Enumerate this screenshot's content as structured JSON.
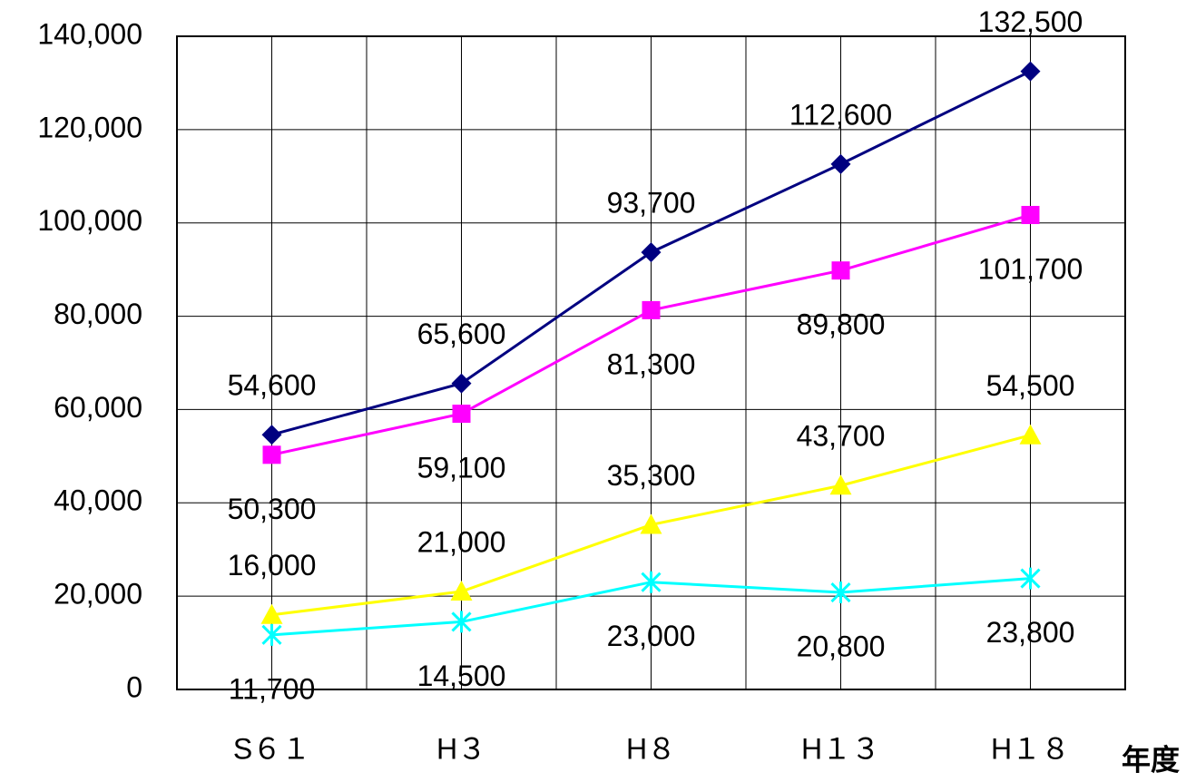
{
  "chart_data": {
    "type": "line",
    "x_label": "年度",
    "categories": [
      "S６１",
      "H３",
      "H８",
      "H１３",
      "H１８"
    ],
    "ylim": [
      0,
      140000
    ],
    "yticks": [
      0,
      {
        "value": 20000,
        "label": "20,000"
      },
      {
        "value": 40000,
        "label": "40,000"
      },
      {
        "value": 60000,
        "label": "60,000"
      },
      {
        "value": 80000,
        "label": "80,000"
      },
      {
        "value": 100000,
        "label": "100,000"
      },
      {
        "value": 120000,
        "label": "120,000"
      },
      {
        "value": 140000,
        "label": "140,000"
      }
    ],
    "grid": true,
    "series": [
      {
        "color": "#000080",
        "marker": "diamond",
        "label_position": "above",
        "values": [
          54600,
          65600,
          93700,
          112600,
          132500
        ],
        "value_labels": [
          "54,600",
          "65,600",
          "93,700",
          "112,600",
          "132,500"
        ]
      },
      {
        "color": "#ff00ff",
        "marker": "square",
        "label_position": "below",
        "values": [
          50300,
          59100,
          81300,
          89800,
          101700
        ],
        "value_labels": [
          "50,300",
          "59,100",
          "81,300",
          "89,800",
          "101,700"
        ]
      },
      {
        "color": "#ffff00",
        "marker": "triangle",
        "label_position": "above",
        "values": [
          16000,
          21000,
          35300,
          43700,
          54500
        ],
        "value_labels": [
          "16,000",
          "21,000",
          "35,300",
          "43,700",
          "54,500"
        ]
      },
      {
        "color": "#00ffff",
        "marker": "x",
        "label_position": "below",
        "values": [
          11700,
          14500,
          23000,
          20800,
          23800
        ],
        "value_labels": [
          "11,700",
          "14,500",
          "23,000",
          "20,800",
          "23,800"
        ]
      }
    ]
  }
}
